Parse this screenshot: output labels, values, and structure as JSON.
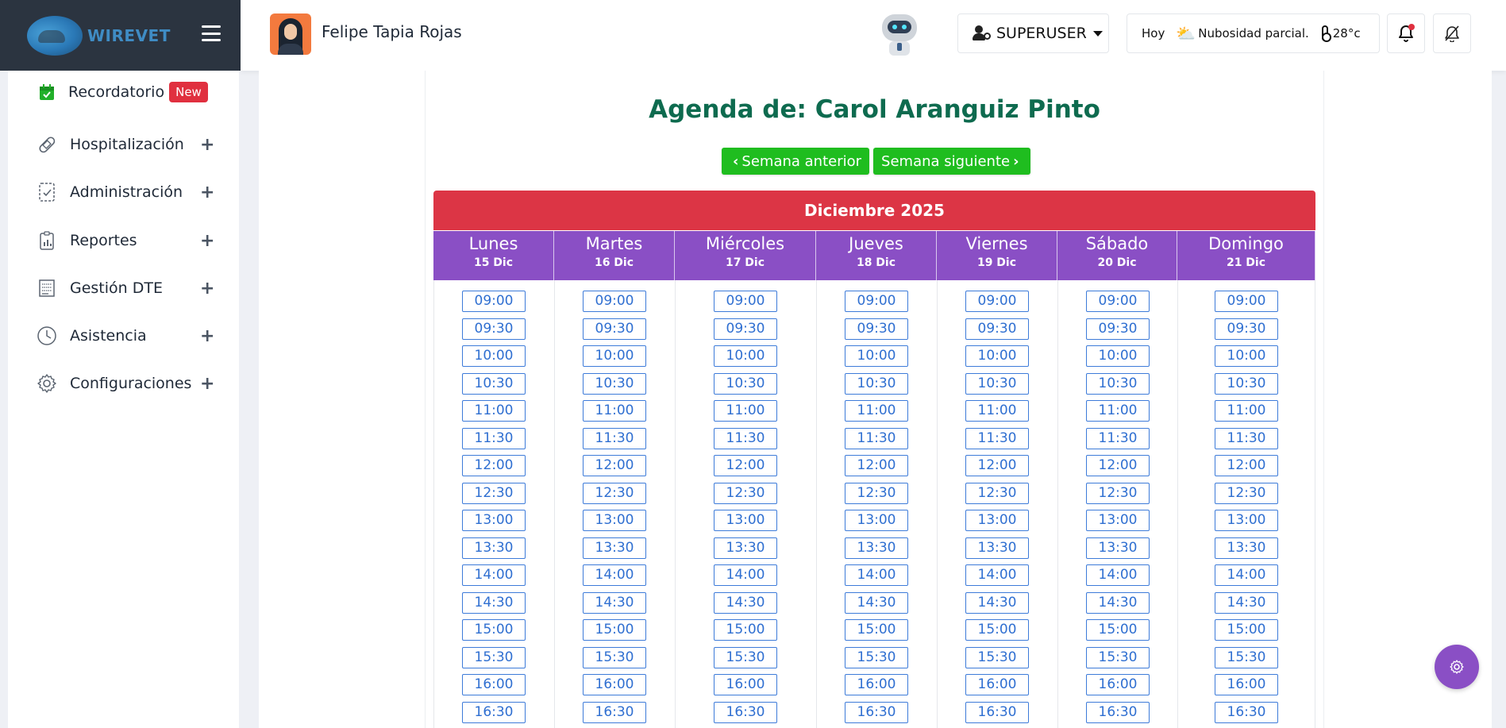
{
  "brand": {
    "name": "WIREVET"
  },
  "header": {
    "user_name": "Felipe Tapia Rojas",
    "role_label": "SUPERUSER",
    "weather": {
      "day": "Hoy",
      "description": "Nubosidad parcial.",
      "temperature": "28°c"
    }
  },
  "sidebar": {
    "items": [
      {
        "label": "Recordatorio",
        "badge": "New",
        "icon": "calendar-check-icon"
      },
      {
        "label": "Hospitalización",
        "icon": "bandage-icon"
      },
      {
        "label": "Administración",
        "icon": "checklist-icon"
      },
      {
        "label": "Reportes",
        "icon": "clipboard-chart-icon"
      },
      {
        "label": "Gestión DTE",
        "icon": "document-list-icon"
      },
      {
        "label": "Asistencia",
        "icon": "clock-icon"
      },
      {
        "label": "Configuraciones",
        "icon": "gear-icon"
      }
    ],
    "plus": "+"
  },
  "agenda": {
    "title": "Agenda de: Carol Aranguiz Pinto",
    "prev_week": "Semana anterior",
    "next_week": "Semana siguiente",
    "month": "Diciembre 2025",
    "days": [
      {
        "name": "Lunes",
        "date": "15 Dic"
      },
      {
        "name": "Martes",
        "date": "16 Dic"
      },
      {
        "name": "Miércoles",
        "date": "17 Dic"
      },
      {
        "name": "Jueves",
        "date": "18 Dic"
      },
      {
        "name": "Viernes",
        "date": "19 Dic"
      },
      {
        "name": "Sábado",
        "date": "20 Dic"
      },
      {
        "name": "Domingo",
        "date": "21 Dic"
      }
    ],
    "slots": [
      "09:00",
      "09:30",
      "10:00",
      "10:30",
      "11:00",
      "11:30",
      "12:00",
      "12:30",
      "13:00",
      "13:30",
      "14:00",
      "14:30",
      "15:00",
      "15:30",
      "16:00",
      "16:30"
    ]
  },
  "colors": {
    "accent_purple": "#8a4fc5",
    "month_red": "#dc3545",
    "nav_green": "#1fbd1f",
    "title_green": "#0e6b4f",
    "slot_blue": "#3d7bd9"
  }
}
